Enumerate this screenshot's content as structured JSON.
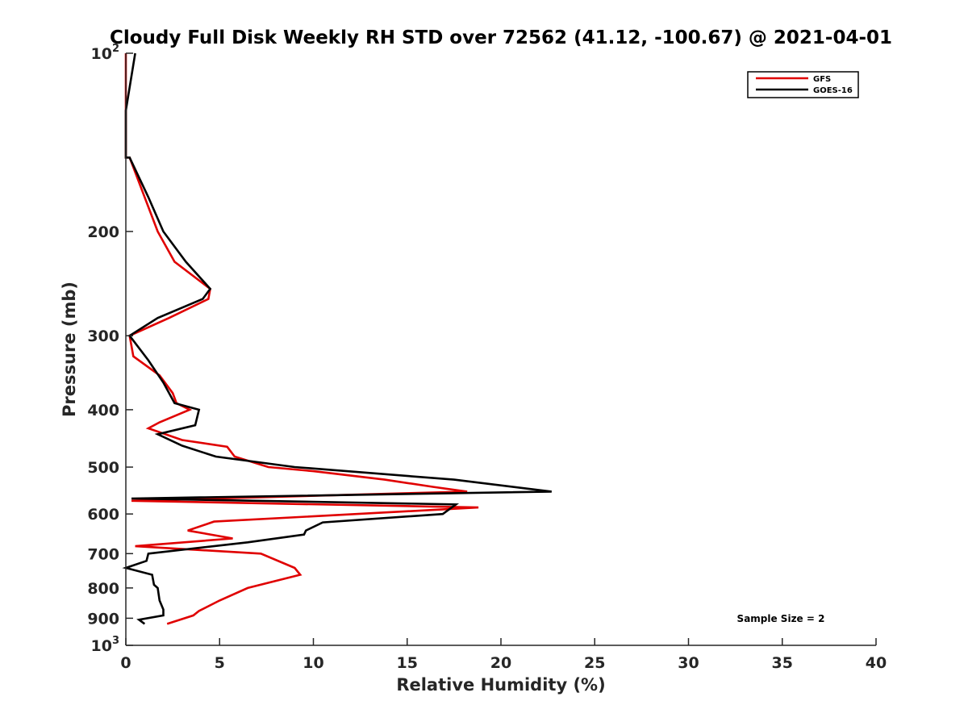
{
  "chart_data": {
    "type": "line",
    "title": "Cloudy Full Disk Weekly RH STD over 72562 (41.12, -100.67) @ 2021-04-01",
    "xlabel": "Relative Humidity (%)",
    "ylabel": "Pressure (mb)",
    "xlim": [
      0,
      40
    ],
    "ylim": [
      100,
      1000
    ],
    "yscale": "log",
    "y_reversed": true,
    "x_ticks": [
      "0",
      "5",
      "10",
      "15",
      "20",
      "25",
      "30",
      "35",
      "40"
    ],
    "y_ticks": [
      {
        "value": 100,
        "label": "10",
        "sup": "2"
      },
      {
        "value": 200,
        "label": "200"
      },
      {
        "value": 300,
        "label": "300"
      },
      {
        "value": 400,
        "label": "400"
      },
      {
        "value": 500,
        "label": "500"
      },
      {
        "value": 600,
        "label": "600"
      },
      {
        "value": 700,
        "label": "700"
      },
      {
        "value": 800,
        "label": "800"
      },
      {
        "value": 900,
        "label": "900"
      },
      {
        "value": 1000,
        "label": "10",
        "sup": "3"
      }
    ],
    "legend_position": "top-right",
    "grid": false,
    "annotation": "Sample Size = 2",
    "series": [
      {
        "name": "GFS",
        "color": "#e00000",
        "points": [
          [
            0.0,
            100
          ],
          [
            0.0,
            125
          ],
          [
            0.0,
            150
          ],
          [
            0.2,
            150
          ],
          [
            1.0,
            175
          ],
          [
            1.7,
            200
          ],
          [
            2.6,
            225
          ],
          [
            4.5,
            250
          ],
          [
            4.4,
            260
          ],
          [
            2.3,
            280
          ],
          [
            0.2,
            300
          ],
          [
            0.4,
            325
          ],
          [
            1.8,
            350
          ],
          [
            2.5,
            375
          ],
          [
            2.7,
            390
          ],
          [
            3.4,
            400
          ],
          [
            1.8,
            420
          ],
          [
            1.2,
            430
          ],
          [
            3.0,
            450
          ],
          [
            5.4,
            462
          ],
          [
            5.8,
            480
          ],
          [
            7.6,
            500
          ],
          [
            10.0,
            508
          ],
          [
            13.8,
            525
          ],
          [
            16.4,
            540
          ],
          [
            18.2,
            550
          ],
          [
            0.3,
            570
          ],
          [
            18.8,
            585
          ],
          [
            4.7,
            618
          ],
          [
            3.3,
            640
          ],
          [
            5.7,
            660
          ],
          [
            0.5,
            680
          ],
          [
            7.2,
            700
          ],
          [
            9.0,
            740
          ],
          [
            9.3,
            760
          ],
          [
            6.5,
            800
          ],
          [
            5.0,
            840
          ],
          [
            3.9,
            875
          ],
          [
            3.6,
            890
          ],
          [
            2.2,
            920
          ]
        ]
      },
      {
        "name": "GOES-16",
        "color": "#000000",
        "points": [
          [
            0.5,
            100
          ],
          [
            0.0,
            125
          ],
          [
            0.0,
            150
          ],
          [
            0.2,
            150
          ],
          [
            1.2,
            175
          ],
          [
            2.0,
            200
          ],
          [
            3.2,
            225
          ],
          [
            4.5,
            250
          ],
          [
            4.1,
            260
          ],
          [
            1.7,
            280
          ],
          [
            0.2,
            300
          ],
          [
            1.2,
            330
          ],
          [
            2.0,
            360
          ],
          [
            2.6,
            390
          ],
          [
            3.9,
            400
          ],
          [
            3.7,
            425
          ],
          [
            1.7,
            440
          ],
          [
            3.0,
            460
          ],
          [
            4.8,
            480
          ],
          [
            9.0,
            500
          ],
          [
            17.5,
            525
          ],
          [
            22.7,
            550
          ],
          [
            0.3,
            565
          ],
          [
            17.6,
            578
          ],
          [
            16.9,
            600
          ],
          [
            10.5,
            620
          ],
          [
            9.6,
            640
          ],
          [
            9.5,
            650
          ],
          [
            6.5,
            670
          ],
          [
            1.2,
            700
          ],
          [
            1.1,
            720
          ],
          [
            0.0,
            740
          ],
          [
            1.4,
            760
          ],
          [
            1.5,
            790
          ],
          [
            1.7,
            800
          ],
          [
            1.8,
            840
          ],
          [
            2.0,
            870
          ],
          [
            2.0,
            890
          ],
          [
            0.7,
            905
          ],
          [
            1.0,
            920
          ]
        ]
      }
    ]
  }
}
